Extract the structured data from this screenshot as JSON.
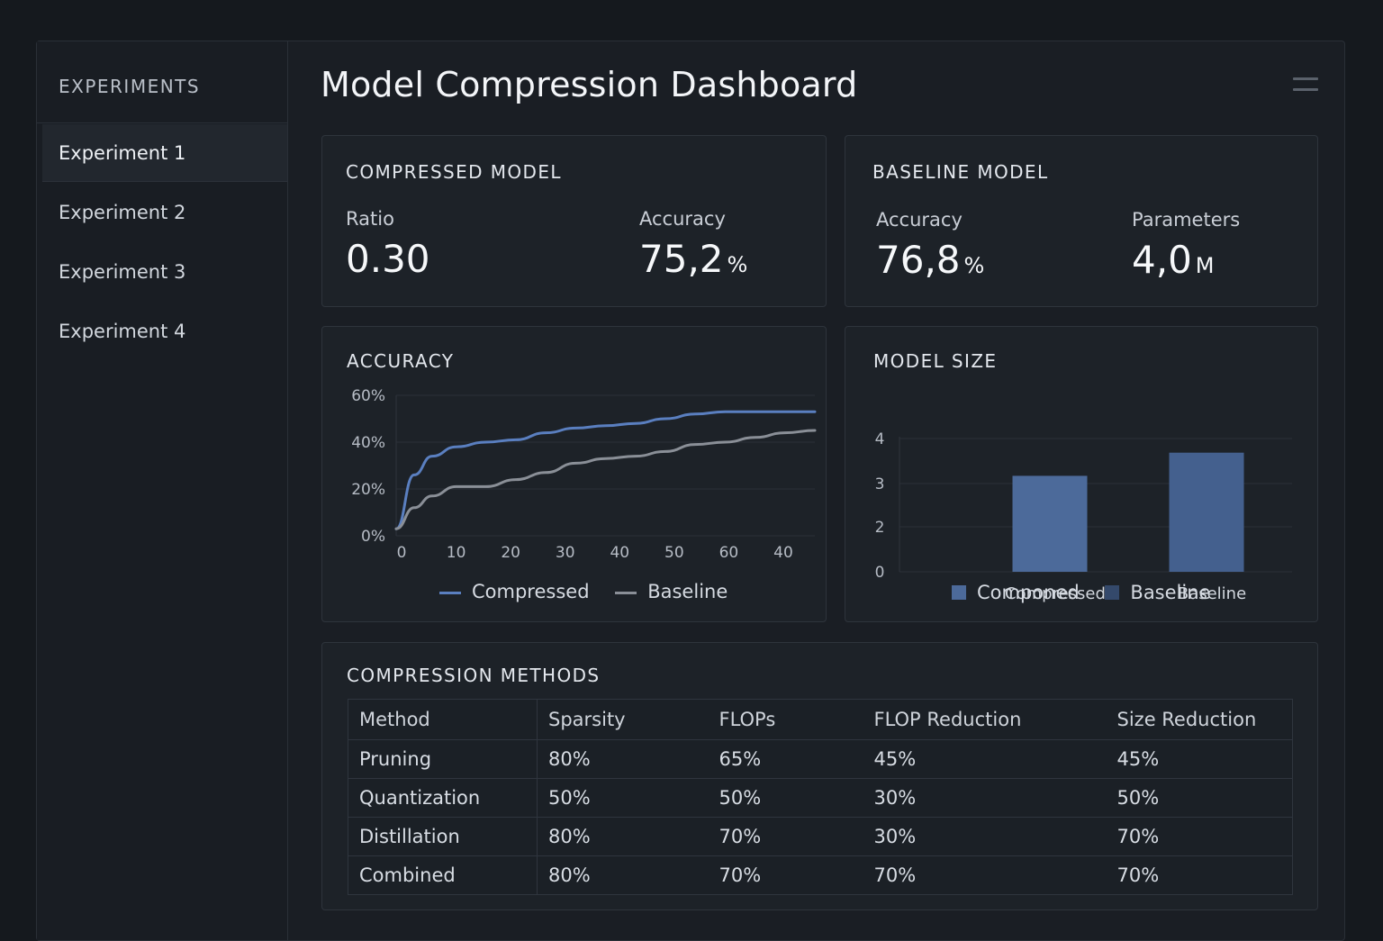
{
  "sidebar": {
    "heading": "EXPERIMENTS",
    "items": [
      "Experiment 1",
      "Experiment 2",
      "Experiment 3",
      "Experiment 4"
    ]
  },
  "header": {
    "title": "Model Compression Dashboard"
  },
  "compressed": {
    "title": "COMPRESSED MODEL",
    "ratio_label": "Ratio",
    "ratio_value": "0.30",
    "accuracy_label": "Accuracy",
    "accuracy_value": "75,2",
    "accuracy_unit": "%"
  },
  "baseline": {
    "title": "BASELINE MODEL",
    "accuracy_label": "Accuracy",
    "accuracy_value": "76,8",
    "accuracy_unit": "%",
    "params_label": "Parameters",
    "params_value": "4,0",
    "params_unit": "M"
  },
  "accuracy_chart": {
    "title": "ACCURACY"
  },
  "size_chart": {
    "title": "MODEL SIZE"
  },
  "chart_data": [
    {
      "type": "line",
      "title": "ACCURACY",
      "x_tick_labels": [
        "0",
        "10",
        "20",
        "30",
        "40",
        "50",
        "60",
        "40"
      ],
      "y_tick_labels": [
        "0%",
        "20%",
        "40%",
        "60%"
      ],
      "ylim": [
        0,
        60
      ],
      "x": [
        0,
        3,
        6,
        10,
        15,
        20,
        25,
        30,
        35,
        40,
        45,
        50,
        55,
        60,
        65,
        70
      ],
      "series": [
        {
          "name": "Compressed",
          "color": "#5a7fc0",
          "values": [
            3,
            26,
            34,
            38,
            40,
            41,
            44,
            46,
            47,
            48,
            50,
            52,
            53,
            53,
            53,
            53
          ]
        },
        {
          "name": "Baseline",
          "color": "#8a8f97",
          "values": [
            3,
            12,
            17,
            21,
            21,
            24,
            27,
            31,
            33,
            34,
            36,
            39,
            40,
            42,
            44,
            45
          ]
        }
      ]
    },
    {
      "type": "bar",
      "title": "MODEL SIZE",
      "categories": [
        "Compressed",
        "Baseline"
      ],
      "values": [
        2.9,
        3.6
      ],
      "colors": [
        "#4c6a9a",
        "#44608e"
      ],
      "y_tick_labels": [
        "0",
        "2",
        "3",
        "4"
      ],
      "legend": [
        {
          "name": "Componed",
          "color": "#4c6a9a"
        },
        {
          "name": "Baseline",
          "color": "#34496b"
        }
      ]
    }
  ],
  "methods": {
    "title": "COMPRESSION METHODS",
    "columns": [
      "Method",
      "Sparsity",
      "FLOPs",
      "FLOP Reduction",
      "Size Reduction"
    ],
    "rows": [
      [
        "Pruning",
        "80%",
        "65%",
        "45%",
        "45%"
      ],
      [
        "Quantization",
        "50%",
        "50%",
        "30%",
        "50%"
      ],
      [
        "Distillation",
        "80%",
        "70%",
        "30%",
        "70%"
      ],
      [
        "Combined",
        "80%",
        "70%",
        "70%",
        "70%"
      ]
    ]
  }
}
